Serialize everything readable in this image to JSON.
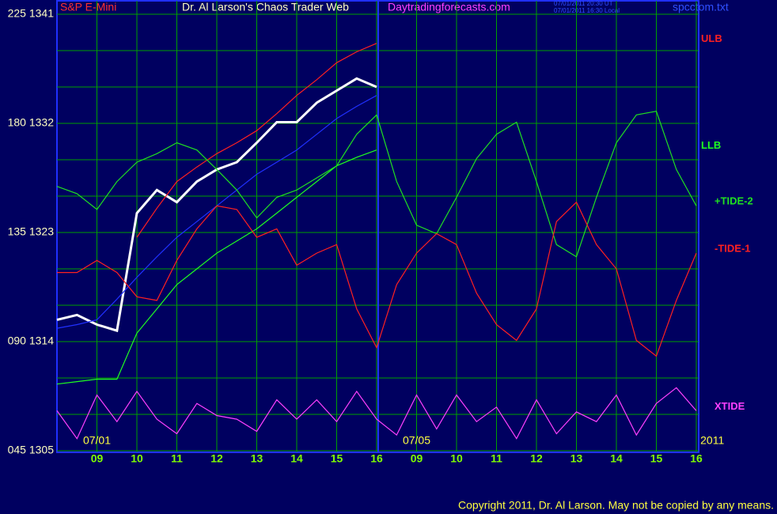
{
  "chart_data": {
    "type": "line",
    "title": "Dr. Al Larson's Chaos Trader Web",
    "market": "S&P E-Mini",
    "site": "Daytradingforecasts.com",
    "timestamps": [
      "07/01/2011 20:30 UT",
      "07/01/2011 16:30 Local"
    ],
    "file": "spcctom.txt",
    "dates": [
      {
        "x": 1,
        "label": "07/01"
      },
      {
        "x": 9,
        "label": "07/05"
      },
      {
        "x": 16.4,
        "label": "2011"
      }
    ],
    "copyright": "Copyright 2011, Dr. Al Larson. May not be copied by any means.",
    "x": [
      0,
      0.5,
      1,
      1.5,
      2,
      2.5,
      3,
      3.5,
      4,
      4.5,
      5,
      5.5,
      6,
      6.5,
      7,
      7.5,
      8,
      8.5,
      9,
      9.5,
      10,
      10.5,
      11,
      11.5,
      12,
      12.5,
      13,
      13.5,
      14,
      14.5,
      15,
      15.5,
      16
    ],
    "xlim": [
      0,
      16
    ],
    "xticks": [
      {
        "value": 1,
        "label": "09"
      },
      {
        "value": 2,
        "label": "10"
      },
      {
        "value": 3,
        "label": "11"
      },
      {
        "value": 4,
        "label": "12"
      },
      {
        "value": 5,
        "label": "13"
      },
      {
        "value": 6,
        "label": "14"
      },
      {
        "value": 7,
        "label": "15"
      },
      {
        "value": 8,
        "label": "16"
      },
      {
        "value": 9,
        "label": "09"
      },
      {
        "value": 10,
        "label": "10"
      },
      {
        "value": 11,
        "label": "11"
      },
      {
        "value": 12,
        "label": "12"
      },
      {
        "value": 13,
        "label": "13"
      },
      {
        "value": 14,
        "label": "14"
      },
      {
        "value": 15,
        "label": "15"
      },
      {
        "value": 16,
        "label": "16"
      }
    ],
    "day_breaks": [
      8
    ],
    "ylim": [
      1305,
      1341
    ],
    "yticks": [
      {
        "value": 1341,
        "label": "225  1341"
      },
      {
        "value": 1332,
        "label": "180  1332"
      },
      {
        "value": 1323,
        "label": "135  1323"
      },
      {
        "value": 1314,
        "label": "090  1314"
      },
      {
        "value": 1305,
        "label": "045  1305"
      }
    ],
    "ygrid": [
      1305,
      1308,
      1311,
      1314,
      1317,
      1320,
      1323,
      1326,
      1329,
      1332,
      1335,
      1338,
      1341
    ],
    "grid": true,
    "series": [
      {
        "color": "#ffffff",
        "values": [
          1315.8,
          1316.2,
          1315.4,
          1314.9,
          1324.6,
          1326.5,
          1325.5,
          1327.2,
          1328.2,
          1328.8,
          1330.4,
          1332.1,
          1332.1,
          1333.7,
          1334.7,
          1335.7,
          1335.0,
          null,
          null,
          null,
          null,
          null,
          null,
          null,
          null,
          null,
          null,
          null,
          null,
          null,
          null,
          null,
          null
        ]
      },
      {
        "color": "#2030ff",
        "values": [
          1315.1,
          1315.4,
          1315.8,
          1317.5,
          1319.3,
          1321.0,
          1322.6,
          1323.9,
          1325.2,
          1326.5,
          1327.8,
          1328.8,
          1329.8,
          1331.1,
          1332.4,
          1333.4,
          1334.3,
          null,
          null,
          null,
          null,
          null,
          null,
          null,
          null,
          null,
          null,
          null,
          null,
          null,
          null,
          null,
          null
        ]
      },
      {
        "name": "ULB",
        "color": "#ff2020",
        "values": [
          null,
          null,
          null,
          null,
          1322.6,
          1325.0,
          1327.2,
          1328.4,
          1329.5,
          1330.4,
          1331.4,
          1332.8,
          1334.3,
          1335.6,
          1337.0,
          1337.9,
          1338.6,
          null,
          null,
          null,
          null,
          null,
          null,
          null,
          null,
          null,
          null,
          null,
          null,
          null,
          null,
          null,
          null
        ]
      },
      {
        "name": "LLB",
        "color": "#20ff20",
        "values": [
          1310.5,
          1310.7,
          1310.9,
          1310.9,
          1314.7,
          1316.7,
          1318.7,
          1320.0,
          1321.3,
          1322.3,
          1323.3,
          1324.6,
          1325.9,
          1327.2,
          1328.5,
          1329.2,
          1329.8,
          null,
          null,
          null,
          null,
          null,
          null,
          null,
          null,
          null,
          null,
          null,
          null,
          null,
          null,
          null,
          null
        ]
      },
      {
        "name": "+TIDE-2",
        "color": "#20e020",
        "values": [
          1326.8,
          1326.2,
          1324.9,
          1327.2,
          1328.8,
          1329.5,
          1330.4,
          1329.8,
          1328.2,
          1326.5,
          1324.2,
          1325.9,
          1326.5,
          1327.5,
          1328.5,
          1331.1,
          1332.7,
          1327.2,
          1323.6,
          1322.9,
          1325.9,
          1329.1,
          1331.1,
          1332.1,
          1327.2,
          1322.0,
          1321.0,
          1325.9,
          1330.4,
          1332.7,
          1333.0,
          1328.2,
          1325.2
        ]
      },
      {
        "name": "-TIDE-1",
        "color": "#ff2020",
        "values": [
          1319.7,
          1319.7,
          1320.7,
          1319.7,
          1317.7,
          1317.4,
          1320.7,
          1323.3,
          1325.2,
          1324.9,
          1322.6,
          1323.3,
          1320.3,
          1321.3,
          1322.0,
          1316.7,
          1313.5,
          1318.7,
          1321.3,
          1322.9,
          1322.0,
          1318.0,
          1315.4,
          1314.1,
          1316.7,
          1323.9,
          1325.5,
          1322.0,
          1320.0,
          1314.1,
          1312.8,
          1317.4,
          1321.3
        ]
      },
      {
        "name": "XTIDE",
        "color": "#ff40ff",
        "values": [
          1308.3,
          1306.0,
          1309.6,
          1307.4,
          1309.9,
          1307.6,
          1306.4,
          1308.9,
          1307.9,
          1307.6,
          1306.6,
          1309.2,
          1307.6,
          1309.2,
          1307.4,
          1309.9,
          1307.6,
          1306.3,
          1309.6,
          1306.8,
          1309.6,
          1307.4,
          1308.6,
          1306.0,
          1309.2,
          1306.4,
          1308.2,
          1307.4,
          1309.6,
          1306.3,
          1308.9,
          1310.2,
          1308.3
        ]
      }
    ]
  }
}
